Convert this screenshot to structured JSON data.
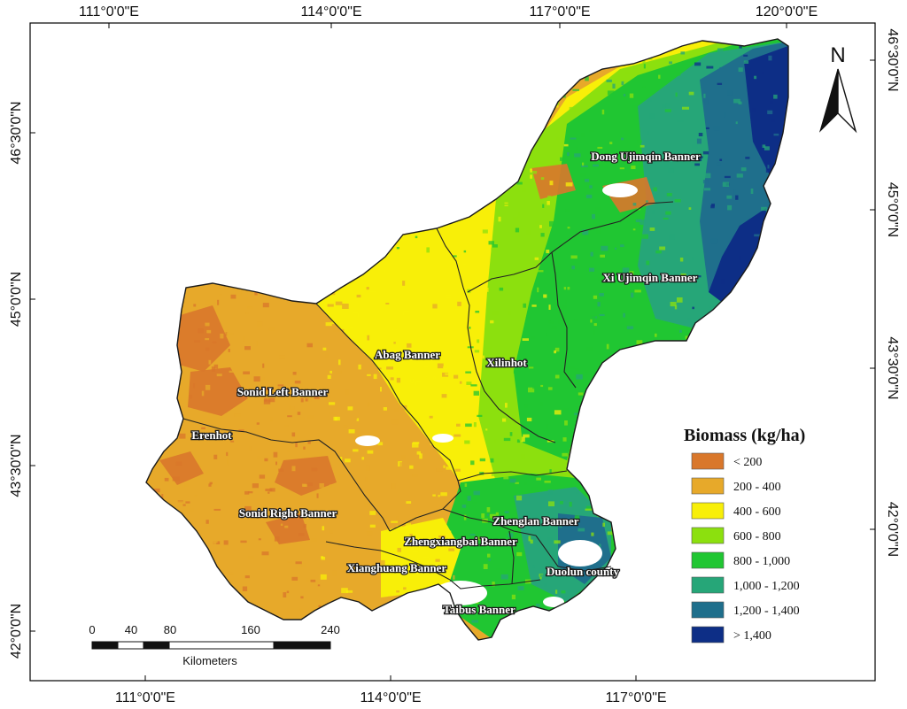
{
  "map": {
    "top_lon_labels": [
      "111°0'0\"E",
      "114°0'0\"E",
      "117°0'0\"E",
      "120°0'0\"E"
    ],
    "bottom_lon_labels": [
      "111°0'0\"E",
      "114°0'0\"E",
      "117°0'0\"E"
    ],
    "left_lat_labels": [
      "46°30'0\"N",
      "45°0'0\"N",
      "43°30'0\"N",
      "42°0'0\"N"
    ],
    "right_lat_labels": [
      "46°30'0\"N",
      "45°0'0\"N",
      "43°30'0\"N",
      "42°0'0\"N"
    ],
    "regions": [
      "Dong Ujimqin Banner",
      "Xi Ujimqin Banner",
      "Abag Banner",
      "Xilinhot",
      "Sonid Left Banner",
      "Erenhot",
      "Sonid Right Banner",
      "Zhenglan Banner",
      "Zhengxiangbai Banner",
      "Xianghuang Banner",
      "Duolun county",
      "Taibus Banner"
    ],
    "north_label": "N"
  },
  "legend": {
    "title": "Biomass (kg/ha)",
    "classes": [
      {
        "label": "< 200",
        "color": "#d9772b"
      },
      {
        "label": "200 - 400",
        "color": "#e7a92a"
      },
      {
        "label": "400 - 600",
        "color": "#f8ef08"
      },
      {
        "label": "600 - 800",
        "color": "#8ce00e"
      },
      {
        "label": "800 - 1,000",
        "color": "#20c632"
      },
      {
        "label": "1,000 - 1,200",
        "color": "#26a678"
      },
      {
        "label": "1,200 - 1,400",
        "color": "#1f6f8c"
      },
      {
        "label": "> 1,400",
        "color": "#0d2e86"
      }
    ]
  },
  "scale_bar": {
    "ticks": [
      "0",
      "40",
      "80",
      "160",
      "240"
    ],
    "unit": "Kilometers"
  }
}
